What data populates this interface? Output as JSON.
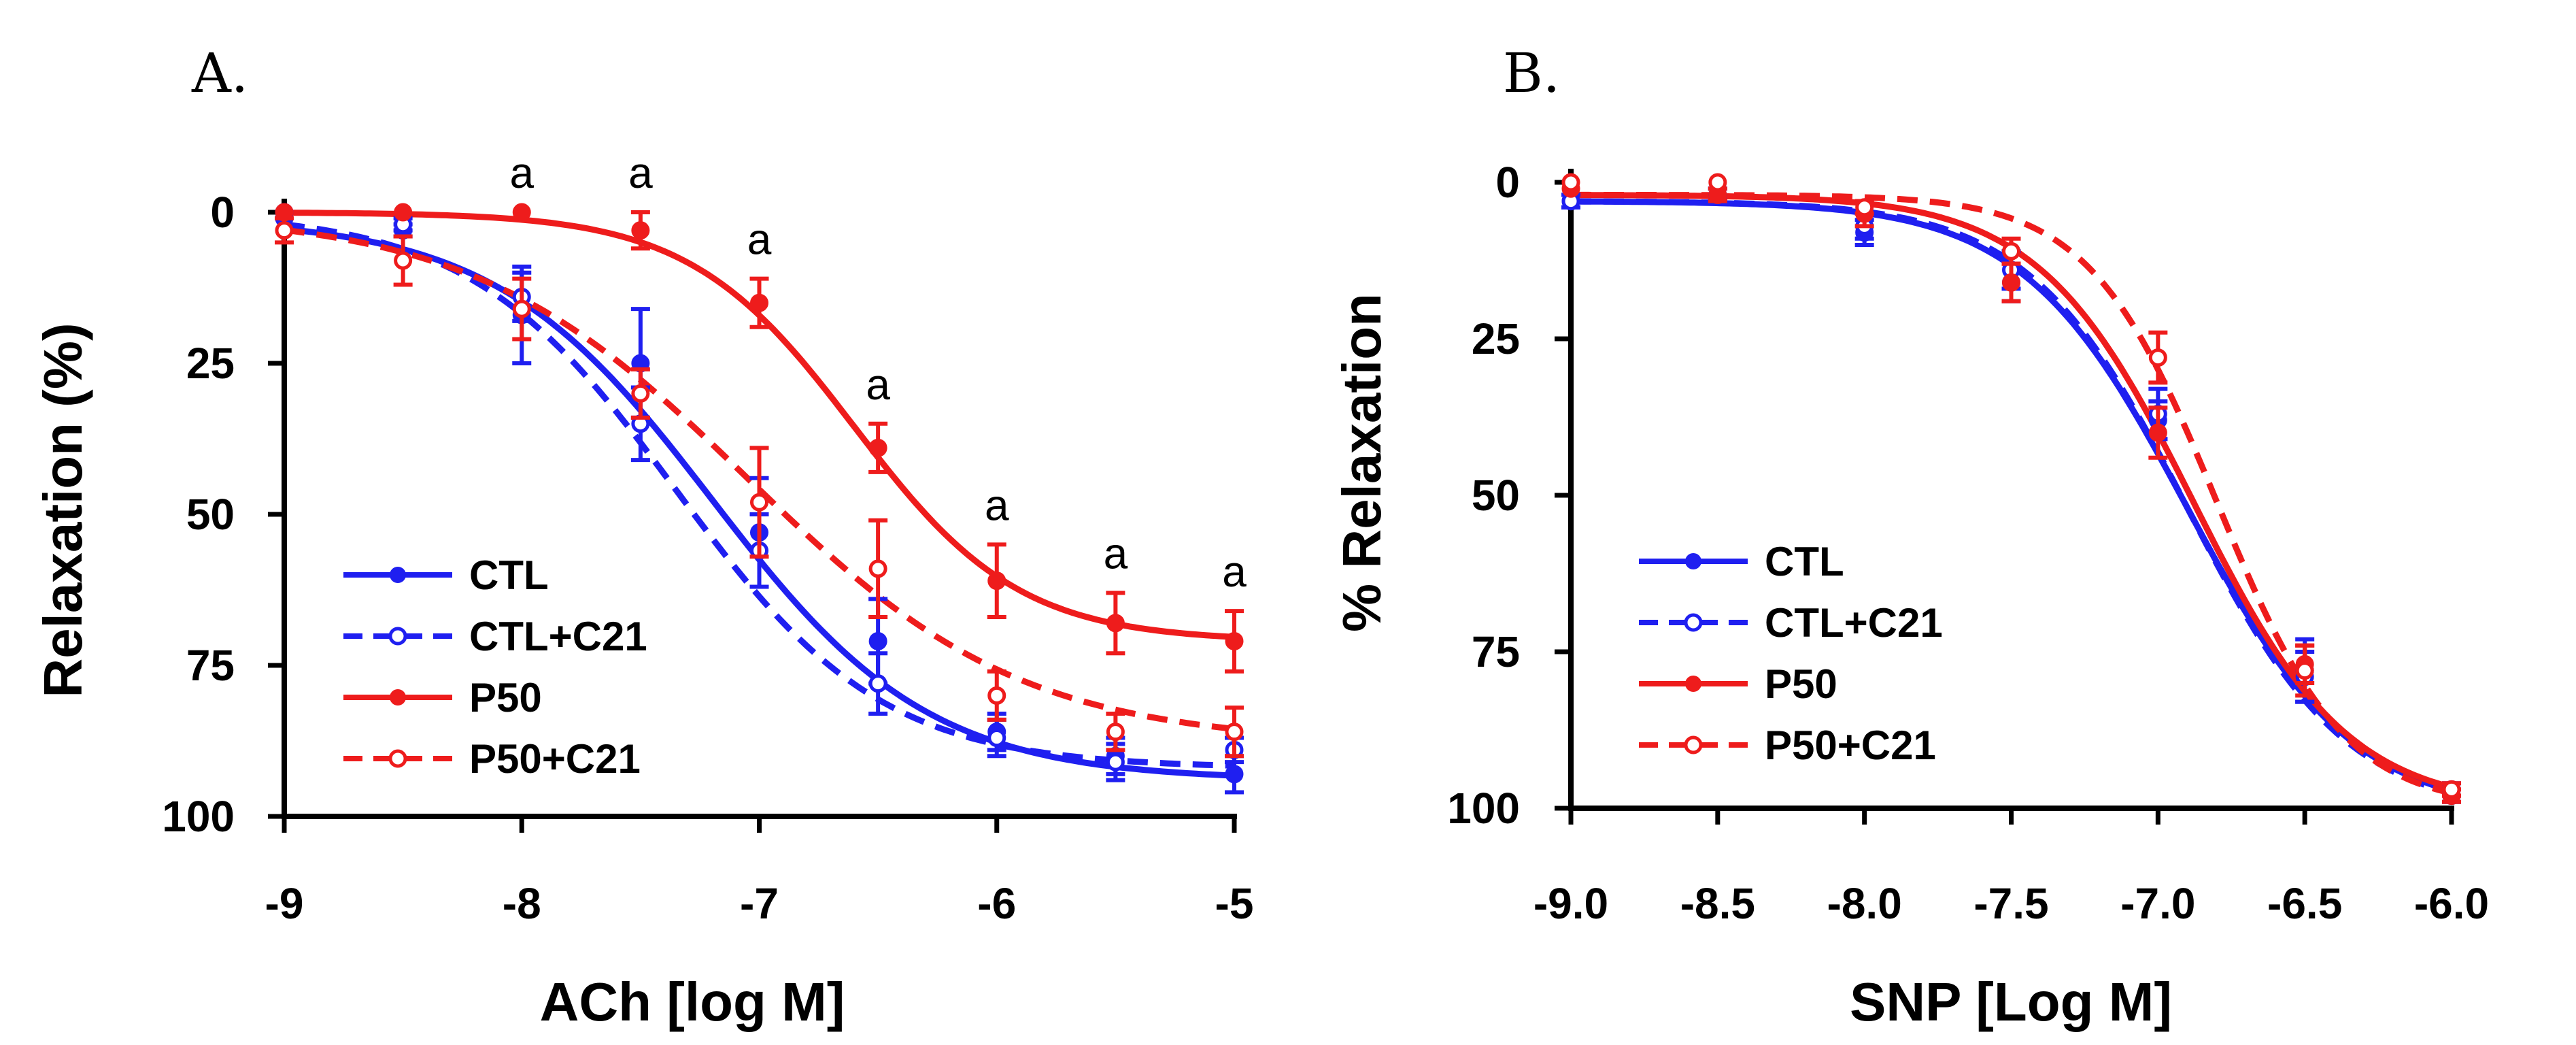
{
  "colors": {
    "blue": "#1f1ff0",
    "red": "#ee1c1c",
    "axis": "#000000"
  },
  "chart_data": [
    {
      "panel": "A.",
      "type": "line",
      "xlabel": "ACh [log M]",
      "ylabel": "Relaxation (%)",
      "xlim": [
        -9,
        -5
      ],
      "ylim": [
        0,
        100
      ],
      "y_inverted": true,
      "xticks": [
        "-9",
        "-8",
        "-7",
        "-6",
        "-5"
      ],
      "xtick_values": [
        -9,
        -8,
        -7,
        -6,
        -5
      ],
      "yticks": [
        "0",
        "25",
        "50",
        "75",
        "100"
      ],
      "ytick_values": [
        0,
        25,
        50,
        75,
        100
      ],
      "legend_position": "bottom-left",
      "annotation_text": "a",
      "annotation_x": [
        -8,
        -7.5,
        -7,
        -6.5,
        -6,
        -5.5,
        -5
      ],
      "series": [
        {
          "name": "CTL",
          "color": "blue",
          "dashed": false,
          "hollow": false,
          "x": [
            -9,
            -8.5,
            -8,
            -7.5,
            -7,
            -6.5,
            -6,
            -5.5,
            -5
          ],
          "y": [
            1,
            3,
            17,
            25,
            53,
            71,
            86,
            90,
            93
          ],
          "err": [
            0,
            1,
            8,
            9,
            9,
            7,
            3,
            3,
            3
          ],
          "fit": {
            "top": 1,
            "bottom": 94,
            "ec50": -7.2,
            "hill": 0.95
          }
        },
        {
          "name": "CTL+C21",
          "color": "blue",
          "dashed": true,
          "hollow": true,
          "x": [
            -9,
            -8.5,
            -8,
            -7.5,
            -7,
            -6.5,
            -6,
            -5.5,
            -5
          ],
          "y": [
            0,
            2,
            14,
            35,
            56,
            78,
            87,
            91,
            89
          ],
          "err": [
            0,
            1,
            4,
            6,
            6,
            5,
            3,
            3,
            2
          ],
          "fit": {
            "top": 0,
            "bottom": 92,
            "ec50": -7.35,
            "hill": 1.0
          }
        },
        {
          "name": "P50",
          "color": "red",
          "dashed": false,
          "hollow": false,
          "x": [
            -9,
            -8.5,
            -8,
            -7.5,
            -7,
            -6.5,
            -6,
            -5.5,
            -5
          ],
          "y": [
            0,
            0,
            0,
            3,
            15,
            39,
            61,
            68,
            71
          ],
          "err": [
            0,
            0,
            0,
            3,
            4,
            4,
            6,
            5,
            5
          ],
          "fit": {
            "top": 0,
            "bottom": 71,
            "ec50": -6.6,
            "hill": 1.25
          }
        },
        {
          "name": "P50+C21",
          "color": "red",
          "dashed": true,
          "hollow": true,
          "x": [
            -9,
            -8.5,
            -8,
            -7.5,
            -7,
            -6.5,
            -6,
            -5.5,
            -5
          ],
          "y": [
            3,
            8,
            16,
            30,
            48,
            59,
            80,
            86,
            86
          ],
          "err": [
            2,
            4,
            5,
            4,
            9,
            8,
            4,
            3,
            4
          ],
          "fit": {
            "top": 0,
            "bottom": 88,
            "ec50": -7.05,
            "hill": 0.75
          }
        }
      ]
    },
    {
      "panel": "B.",
      "type": "line",
      "xlabel": "SNP [Log M]",
      "ylabel": "% Relaxation",
      "xlim": [
        -9.0,
        -6.0
      ],
      "ylim": [
        0,
        100
      ],
      "y_inverted": true,
      "xticks": [
        "-9.0",
        "-8.5",
        "-8.0",
        "-7.5",
        "-7.0",
        "-6.5",
        "-6.0"
      ],
      "xtick_values": [
        -9.0,
        -8.5,
        -8.0,
        -7.5,
        -7.0,
        -6.5,
        -6.0
      ],
      "yticks": [
        "0",
        "25",
        "50",
        "75",
        "100"
      ],
      "ytick_values": [
        0,
        25,
        50,
        75,
        100
      ],
      "legend_position": "bottom-left",
      "series": [
        {
          "name": "CTL",
          "color": "blue",
          "dashed": false,
          "hollow": false,
          "x": [
            -9.0,
            -8.5,
            -8.0,
            -7.5,
            -7.0,
            -6.5,
            -6.0
          ],
          "y": [
            3,
            2,
            8,
            16,
            38,
            78,
            98
          ],
          "err": [
            1,
            1,
            2,
            3,
            3,
            5,
            1
          ],
          "fit": {
            "top": 3,
            "bottom": 101,
            "ec50": -6.9,
            "hill": 1.55
          }
        },
        {
          "name": "CTL+C21",
          "color": "blue",
          "dashed": true,
          "hollow": true,
          "x": [
            -9.0,
            -8.5,
            -8.0,
            -7.5,
            -7.0,
            -6.5,
            -6.0
          ],
          "y": [
            3,
            2,
            7,
            14,
            37,
            79,
            97
          ],
          "err": [
            1,
            1,
            2,
            3,
            4,
            4,
            1
          ],
          "fit": {
            "top": 3,
            "bottom": 101,
            "ec50": -6.9,
            "hill": 1.6
          }
        },
        {
          "name": "P50",
          "color": "red",
          "dashed": false,
          "hollow": false,
          "x": [
            -9.0,
            -8.5,
            -8.0,
            -7.5,
            -7.0,
            -6.5,
            -6.0
          ],
          "y": [
            1,
            2,
            5,
            16,
            40,
            77,
            98
          ],
          "err": [
            0,
            1,
            2,
            3,
            4,
            3,
            1
          ],
          "fit": {
            "top": 2,
            "bottom": 100,
            "ec50": -6.88,
            "hill": 1.65
          }
        },
        {
          "name": "P50+C21",
          "color": "red",
          "dashed": true,
          "hollow": true,
          "x": [
            -9.0,
            -8.5,
            -8.0,
            -7.5,
            -7.0,
            -6.5,
            -6.0
          ],
          "y": [
            0,
            0,
            4,
            11,
            28,
            78,
            97
          ],
          "err": [
            0,
            0,
            1,
            2,
            4,
            4,
            1
          ],
          "fit": {
            "top": 2,
            "bottom": 100,
            "ec50": -6.8,
            "hill": 2.0
          }
        }
      ]
    }
  ]
}
